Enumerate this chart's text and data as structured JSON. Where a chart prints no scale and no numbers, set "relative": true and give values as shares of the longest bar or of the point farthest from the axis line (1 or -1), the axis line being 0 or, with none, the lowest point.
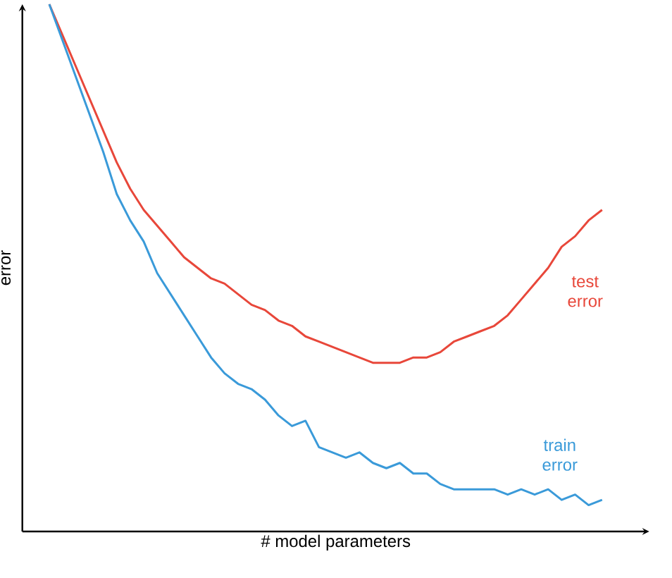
{
  "chart_data": {
    "type": "line",
    "relative": true,
    "xlabel": "# model parameters",
    "ylabel": "error",
    "categories": [
      null,
      null,
      null,
      null,
      null,
      null,
      null,
      null,
      null,
      null,
      null,
      null,
      null,
      null,
      null,
      null,
      null,
      null,
      null,
      null,
      null,
      null,
      null,
      null,
      null,
      null,
      null,
      null,
      null,
      null,
      null,
      null,
      null,
      null,
      null,
      null,
      null,
      null,
      null,
      null,
      null,
      null
    ],
    "series": [
      {
        "name": "test error",
        "color": "#e8473a",
        "values": [
          1.0,
          0.94,
          0.88,
          0.82,
          0.76,
          0.7,
          0.65,
          0.61,
          0.58,
          0.55,
          0.52,
          0.5,
          0.48,
          0.47,
          0.45,
          0.43,
          0.42,
          0.4,
          0.39,
          0.37,
          0.36,
          0.35,
          0.34,
          0.33,
          0.32,
          0.32,
          0.32,
          0.33,
          0.33,
          0.34,
          0.36,
          0.37,
          0.38,
          0.39,
          0.41,
          0.44,
          0.47,
          0.5,
          0.54,
          0.56,
          0.59,
          0.61
        ]
      },
      {
        "name": "train error",
        "color": "#3a9ad9",
        "values": [
          1.0,
          0.93,
          0.86,
          0.79,
          0.72,
          0.64,
          0.59,
          0.55,
          0.49,
          0.45,
          0.41,
          0.37,
          0.33,
          0.3,
          0.28,
          0.27,
          0.25,
          0.22,
          0.2,
          0.21,
          0.16,
          0.15,
          0.14,
          0.15,
          0.13,
          0.12,
          0.13,
          0.11,
          0.11,
          0.09,
          0.08,
          0.08,
          0.08,
          0.08,
          0.07,
          0.08,
          0.07,
          0.08,
          0.06,
          0.07,
          0.05,
          0.06
        ]
      }
    ],
    "line_style": "solid"
  }
}
